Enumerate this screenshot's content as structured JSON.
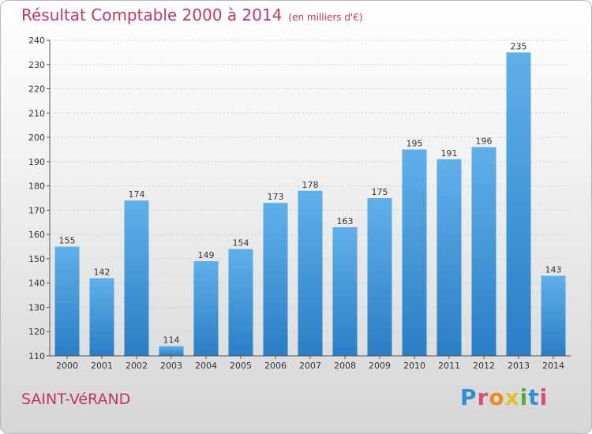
{
  "header": {
    "title": "Résultat Comptable 2000 à 2014",
    "subtitle": "(en milliers d'€)"
  },
  "footer": {
    "city": "SAINT-VéRAND",
    "brand": "Proxiti"
  },
  "colors": {
    "title": "#c0366a",
    "bar_top": "#5fb0ea",
    "bar_bottom": "#2a7ec4",
    "brand_letters": [
      "#2f8fd4",
      "#e04a7a",
      "#f08a1e",
      "#e0c12a",
      "#5aaa3a",
      "#2f8fd4",
      "#e04a7a"
    ]
  },
  "chart_data": {
    "type": "bar",
    "title": "Résultat Comptable 2000 à 2014",
    "xlabel": "",
    "ylabel": "",
    "categories": [
      "2000",
      "2001",
      "2002",
      "2003",
      "2004",
      "2005",
      "2006",
      "2007",
      "2008",
      "2009",
      "2010",
      "2011",
      "2012",
      "2013",
      "2014"
    ],
    "values": [
      155,
      142,
      174,
      114,
      149,
      154,
      173,
      178,
      163,
      175,
      195,
      191,
      196,
      235,
      143
    ],
    "ylim": [
      110,
      240
    ],
    "yticks": [
      110,
      120,
      130,
      140,
      150,
      160,
      170,
      180,
      190,
      200,
      210,
      220,
      230,
      240
    ],
    "grid": true,
    "legend": "none"
  }
}
